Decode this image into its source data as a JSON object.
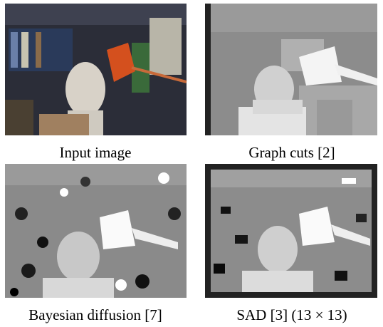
{
  "panels": [
    {
      "caption": "Input image"
    },
    {
      "caption": "Graph cuts [2]"
    },
    {
      "caption": "Bayesian diffusion [7]"
    },
    {
      "caption": "SAD [3] (13 × 13)"
    }
  ]
}
